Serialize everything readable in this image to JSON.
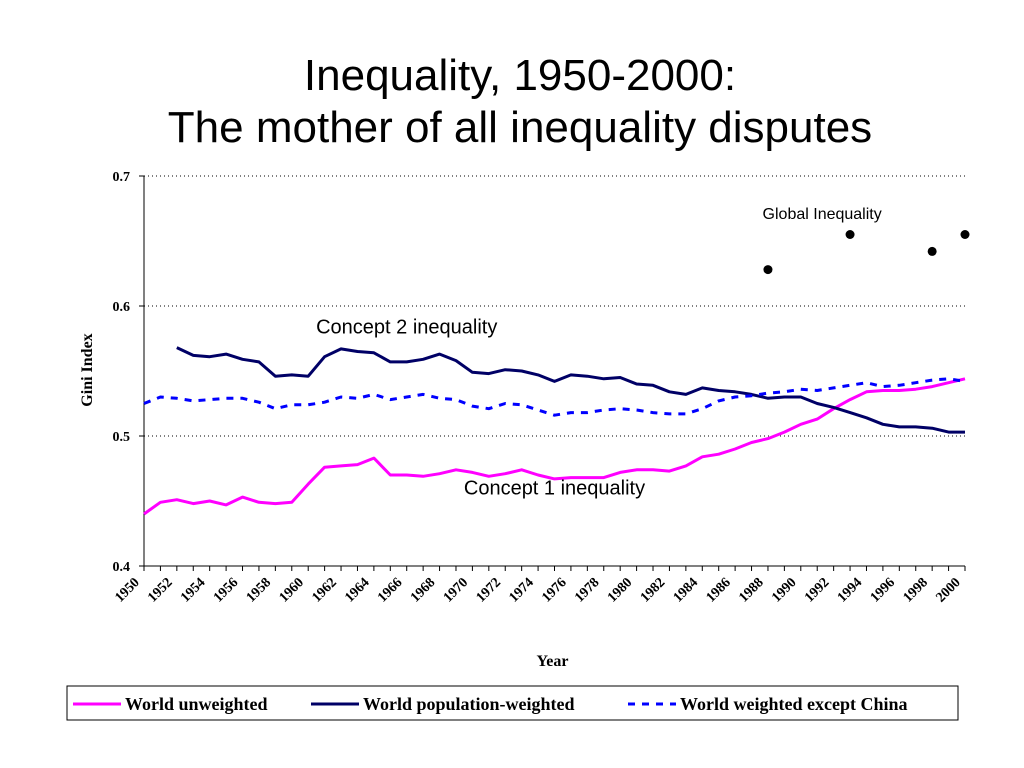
{
  "slide": {
    "title_line1": "Inequality, 1950-2000:",
    "title_line2": "The mother of all inequality disputes"
  },
  "chart_data": {
    "type": "line",
    "xlabel": "Year",
    "ylabel": "Gini Index",
    "ylim": [
      0.4,
      0.7
    ],
    "yticks": [
      "0.4",
      "0.5",
      "0.6",
      "0.7"
    ],
    "xlim": [
      1950,
      2000
    ],
    "xticks": [
      "1950",
      "1952",
      "1954",
      "1956",
      "1958",
      "1960",
      "1962",
      "1964",
      "1966",
      "1968",
      "1970",
      "1972",
      "1974",
      "1976",
      "1978",
      "1980",
      "1982",
      "1984",
      "1986",
      "1988",
      "1990",
      "1992",
      "1994",
      "1996",
      "1998",
      "2000"
    ],
    "grid": "horizontal dotted",
    "legend_position": "bottom",
    "series": [
      {
        "name": "World unweighted",
        "color": "#ff00ff",
        "dash": "solid",
        "x": [
          1950,
          1951,
          1952,
          1953,
          1954,
          1955,
          1956,
          1957,
          1958,
          1959,
          1960,
          1961,
          1962,
          1963,
          1964,
          1965,
          1966,
          1967,
          1968,
          1969,
          1970,
          1971,
          1972,
          1973,
          1974,
          1975,
          1976,
          1977,
          1978,
          1979,
          1980,
          1981,
          1982,
          1983,
          1984,
          1985,
          1986,
          1987,
          1988,
          1989,
          1990,
          1991,
          1992,
          1993,
          1994,
          1995,
          1996,
          1997,
          1998,
          1999,
          2000
        ],
        "values": [
          0.44,
          0.449,
          0.451,
          0.448,
          0.45,
          0.447,
          0.453,
          0.449,
          0.448,
          0.449,
          0.463,
          0.476,
          0.477,
          0.478,
          0.483,
          0.47,
          0.47,
          0.469,
          0.471,
          0.474,
          0.472,
          0.469,
          0.471,
          0.474,
          0.47,
          0.467,
          0.468,
          0.468,
          0.468,
          0.472,
          0.474,
          0.474,
          0.473,
          0.477,
          0.484,
          0.486,
          0.49,
          0.495,
          0.498,
          0.503,
          0.509,
          0.513,
          0.521,
          0.528,
          0.534,
          0.535,
          0.535,
          0.536,
          0.538,
          0.541,
          0.544
        ]
      },
      {
        "name": "World population-weighted",
        "color": "#000066",
        "dash": "solid",
        "x": [
          1952,
          1953,
          1954,
          1955,
          1956,
          1957,
          1958,
          1959,
          1960,
          1961,
          1962,
          1963,
          1964,
          1965,
          1966,
          1967,
          1968,
          1969,
          1970,
          1971,
          1972,
          1973,
          1974,
          1975,
          1976,
          1977,
          1978,
          1979,
          1980,
          1981,
          1982,
          1983,
          1984,
          1985,
          1986,
          1987,
          1988,
          1989,
          1990,
          1991,
          1992,
          1993,
          1994,
          1995,
          1996,
          1997,
          1998,
          1999,
          2000
        ],
        "values": [
          0.568,
          0.562,
          0.561,
          0.563,
          0.559,
          0.557,
          0.546,
          0.547,
          0.546,
          0.561,
          0.567,
          0.565,
          0.564,
          0.557,
          0.557,
          0.559,
          0.563,
          0.558,
          0.549,
          0.548,
          0.551,
          0.55,
          0.547,
          0.542,
          0.547,
          0.546,
          0.544,
          0.545,
          0.54,
          0.539,
          0.534,
          0.532,
          0.537,
          0.535,
          0.534,
          0.532,
          0.529,
          0.53,
          0.53,
          0.525,
          0.522,
          0.518,
          0.514,
          0.509,
          0.507,
          0.507,
          0.506,
          0.503,
          0.503
        ]
      },
      {
        "name": "World weighted except China",
        "color": "#0000ff",
        "dash": "dashed",
        "x": [
          1950,
          1951,
          1952,
          1953,
          1954,
          1955,
          1956,
          1957,
          1958,
          1959,
          1960,
          1961,
          1962,
          1963,
          1964,
          1965,
          1966,
          1967,
          1968,
          1969,
          1970,
          1971,
          1972,
          1973,
          1974,
          1975,
          1976,
          1977,
          1978,
          1979,
          1980,
          1981,
          1982,
          1983,
          1984,
          1985,
          1986,
          1987,
          1988,
          1989,
          1990,
          1991,
          1992,
          1993,
          1994,
          1995,
          1996,
          1997,
          1998,
          1999,
          2000
        ],
        "values": [
          0.525,
          0.53,
          0.529,
          0.527,
          0.528,
          0.529,
          0.529,
          0.526,
          0.521,
          0.524,
          0.524,
          0.526,
          0.53,
          0.529,
          0.532,
          0.528,
          0.53,
          0.532,
          0.529,
          0.528,
          0.523,
          0.521,
          0.525,
          0.524,
          0.52,
          0.516,
          0.518,
          0.518,
          0.52,
          0.521,
          0.52,
          0.518,
          0.517,
          0.517,
          0.521,
          0.527,
          0.53,
          0.531,
          0.533,
          0.534,
          0.536,
          0.535,
          0.537,
          0.539,
          0.541,
          0.538,
          0.539,
          0.541,
          0.543,
          0.544,
          0.542
        ]
      }
    ],
    "global_inequality": {
      "color": "#000000",
      "x": [
        1988,
        1993,
        1998,
        2000
      ],
      "values": [
        0.628,
        0.655,
        0.642,
        0.655
      ]
    },
    "annotations": [
      {
        "text": "Global Inequality",
        "x": 1991.3,
        "y": 0.667
      },
      {
        "text": "Concept 2 inequality",
        "x": 1966.0,
        "y": 0.579
      },
      {
        "text": "Concept 1 inequality",
        "x": 1975.0,
        "y": 0.455
      }
    ]
  }
}
